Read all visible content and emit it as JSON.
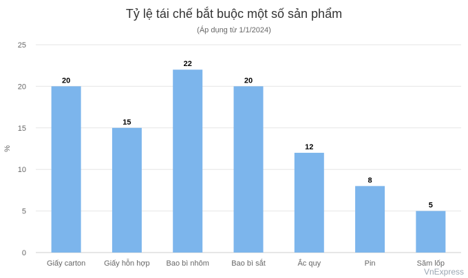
{
  "chart_data": {
    "type": "bar",
    "title": "Tỷ lệ tái chế bắt buộc một số sản phẩm",
    "subtitle": "(Áp dụng từ 1/1/2024)",
    "xlabel": "",
    "ylabel": "%",
    "categories": [
      "Giấy carton",
      "Giấy hỗn hợp",
      "Bao bì nhôm",
      "Bao bì sắt",
      "Ắc quy",
      "Pin",
      "Săm lốp"
    ],
    "values": [
      20,
      15,
      22,
      20,
      12,
      8,
      5
    ],
    "ylim": [
      0,
      25
    ],
    "yticks": [
      0,
      5,
      10,
      15,
      20,
      25
    ],
    "grid": true,
    "data_labels": true,
    "bar_color": "#7cb5ec"
  },
  "watermark": "VnExpress"
}
